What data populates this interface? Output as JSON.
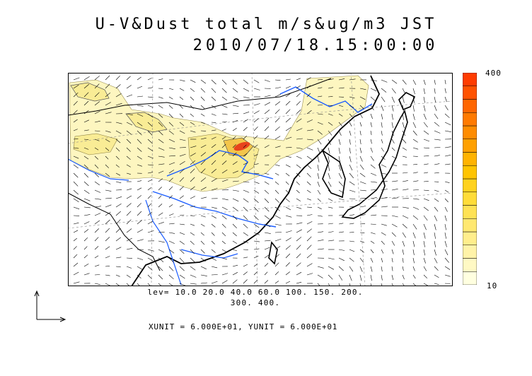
{
  "title": {
    "line1": "U-V&Dust total m/s&ug/m3 JST",
    "line2": "2010/07/18.15:00:00"
  },
  "colorbar": {
    "max_label": "400",
    "min_label": "10",
    "colors": [
      "#ffffe0",
      "#fff9c4",
      "#fff3a8",
      "#ffee8c",
      "#ffe870",
      "#ffe254",
      "#ffdc38",
      "#ffd21e",
      "#ffc400",
      "#ffb300",
      "#ffa000",
      "#ff8c00",
      "#ff7a00",
      "#ff6600",
      "#ff5200",
      "#ff3c00"
    ]
  },
  "levels": {
    "line1": "lev= 10.0 20.0 40.0 60.0 100. 150. 200.",
    "line2": "300. 400."
  },
  "units": {
    "text": "XUNIT = 6.000E+01, YUNIT = 6.000E+01"
  },
  "map": {
    "land_color": "#ffffff",
    "dust_light": "#fdf6c0",
    "dust_mid": "#f9ec95",
    "dust_high": "#f3c54a",
    "dust_peak": "#e8431c",
    "river_color": "#1a5cff",
    "coast_color": "#000000",
    "grid_color": "#888888"
  }
}
